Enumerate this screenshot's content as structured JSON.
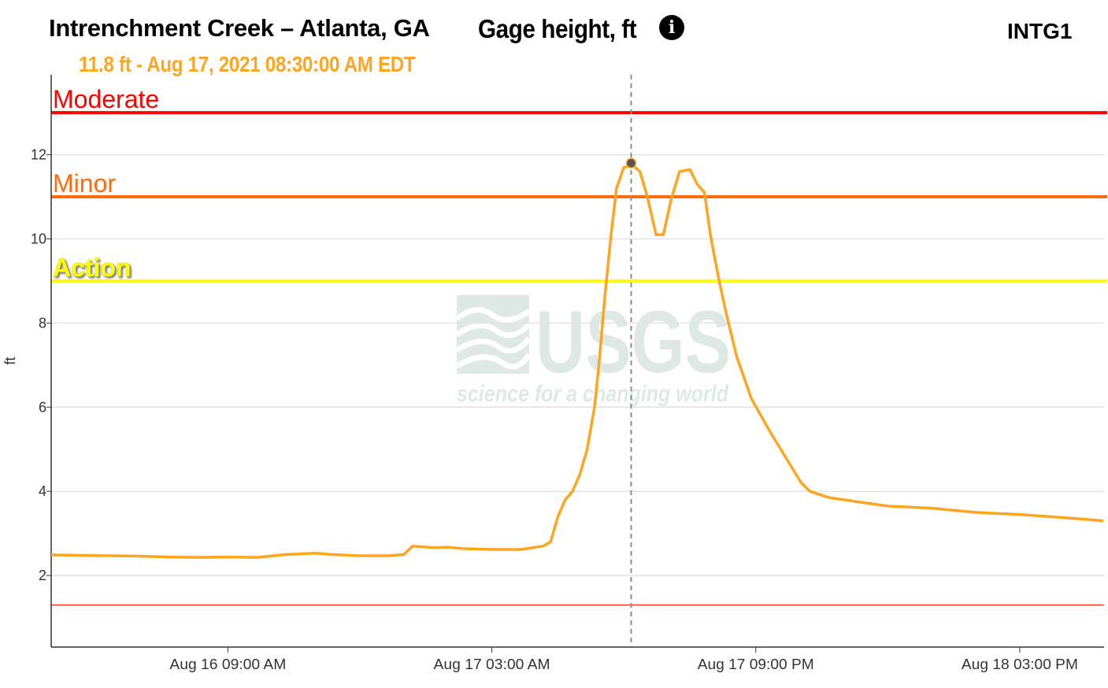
{
  "header": {
    "title": "Intrenchment Creek – Atlanta, GA",
    "parameter": "Gage height, ft",
    "site_id": "INTG1",
    "readout": "11.8 ft - Aug 17, 2021 08:30:00 AM EDT",
    "info_icon": "info-icon",
    "info_glyph": "i"
  },
  "watermark": {
    "logo": "USGS",
    "tagline": "science for a changing world"
  },
  "chart_data": {
    "type": "line",
    "ylabel": "ft",
    "xlabel": "",
    "ylim": [
      0.3,
      13.9
    ],
    "x_range_hours": [
      -6.05,
      65.75
    ],
    "x_reference": "2021-08-16 03:00 EDT",
    "yticks": [
      2,
      4,
      6,
      8,
      10,
      12
    ],
    "xticks": [
      {
        "label": "Aug 16 09:00 AM",
        "hours": 6
      },
      {
        "label": "Aug 17 03:00 AM",
        "hours": 24
      },
      {
        "label": "Aug 17 09:00 PM",
        "hours": 42
      },
      {
        "label": "Aug 18 03:00 PM",
        "hours": 60
      }
    ],
    "grid": true,
    "series": [
      {
        "color": "#ffa51f",
        "points": [
          [
            -6.05,
            2.49
          ],
          [
            -4.0,
            2.48
          ],
          [
            -2.0,
            2.47
          ],
          [
            0.0,
            2.46
          ],
          [
            2.0,
            2.44
          ],
          [
            4.0,
            2.43
          ],
          [
            6.0,
            2.44
          ],
          [
            8.0,
            2.43
          ],
          [
            10.0,
            2.5
          ],
          [
            12.0,
            2.53
          ],
          [
            13.0,
            2.5
          ],
          [
            15.0,
            2.47
          ],
          [
            17.0,
            2.47
          ],
          [
            18.0,
            2.5
          ],
          [
            18.6,
            2.7
          ],
          [
            20.0,
            2.66
          ],
          [
            21.0,
            2.67
          ],
          [
            22.0,
            2.64
          ],
          [
            24.0,
            2.62
          ],
          [
            26.0,
            2.62
          ],
          [
            27.5,
            2.7
          ],
          [
            28.0,
            2.8
          ],
          [
            28.5,
            3.4
          ],
          [
            29.0,
            3.8
          ],
          [
            29.5,
            4.0
          ],
          [
            30.0,
            4.4
          ],
          [
            30.5,
            5.0
          ],
          [
            31.0,
            6.0
          ],
          [
            31.3,
            7.0
          ],
          [
            31.7,
            8.6
          ],
          [
            32.1,
            10.0
          ],
          [
            32.5,
            11.2
          ],
          [
            33.0,
            11.7
          ],
          [
            33.6,
            11.75
          ],
          [
            34.1,
            11.6
          ],
          [
            34.6,
            11.0
          ],
          [
            35.2,
            10.1
          ],
          [
            35.7,
            10.1
          ],
          [
            36.2,
            10.9
          ],
          [
            36.8,
            11.6
          ],
          [
            37.5,
            11.65
          ],
          [
            38.0,
            11.3
          ],
          [
            38.5,
            11.1
          ],
          [
            38.9,
            10.1
          ],
          [
            39.5,
            9.0
          ],
          [
            40.0,
            8.2
          ],
          [
            40.7,
            7.2
          ],
          [
            41.7,
            6.2
          ],
          [
            43.0,
            5.4
          ],
          [
            44.4,
            4.6
          ],
          [
            45.1,
            4.2
          ],
          [
            45.7,
            4.0
          ],
          [
            47.0,
            3.85
          ],
          [
            49.0,
            3.75
          ],
          [
            51.0,
            3.65
          ],
          [
            54.0,
            3.6
          ],
          [
            57.0,
            3.5
          ],
          [
            60.0,
            3.45
          ],
          [
            62.0,
            3.4
          ],
          [
            64.0,
            3.35
          ],
          [
            65.7,
            3.3
          ]
        ]
      }
    ],
    "thresholds": [
      {
        "name": "Moderate",
        "value": 13.0,
        "color": "#ff0000"
      },
      {
        "name": "Minor",
        "value": 11.0,
        "color": "#ff6a0a"
      },
      {
        "name": "Action",
        "value": 9.0,
        "color": "#ffff00"
      }
    ],
    "baseline": {
      "value": 1.3,
      "color": "#ff3b1f"
    },
    "marker": {
      "x": 33.5,
      "y": 11.8,
      "color": "#555555"
    }
  }
}
